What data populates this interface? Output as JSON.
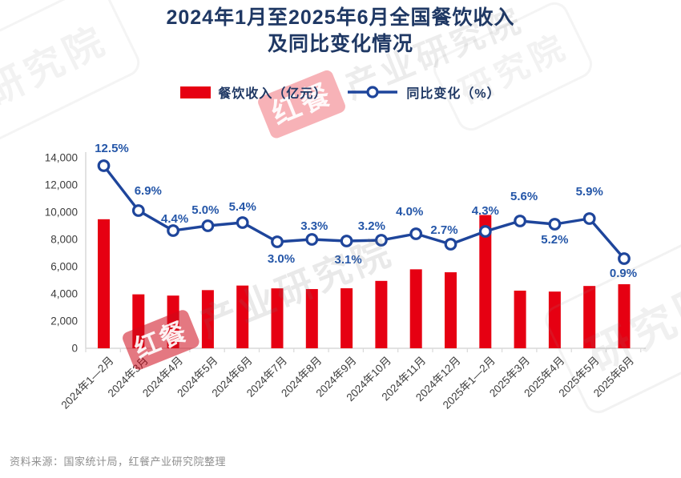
{
  "title": {
    "line1": "2024年1月至2025年6月全国餐饮收入",
    "line2": "及同比变化情况"
  },
  "legend": {
    "bar_label": "餐饮收入（亿元）",
    "line_label": "同比变化（%）"
  },
  "source": "资料来源：国家统计局，红餐产业研究院整理",
  "watermark": {
    "brand": "红餐",
    "suffix": "产业研究院",
    "stamp": "研究院"
  },
  "colors": {
    "bar_red": "#e60012",
    "line_blue": "#1e459b",
    "value_label_blue": "#2456a8",
    "title_navy": "#1f3864",
    "axis_gray": "#d9d9d9",
    "tick_text_gray": "#3d3d3d",
    "source_gray": "#8f8f8f"
  },
  "chart_data": {
    "type": "bar+line",
    "title": "2024年1月至2025年6月全国餐饮收入及同比变化情况",
    "categories": [
      "2024年1—2月",
      "2024年3月",
      "2024年4月",
      "2024年5月",
      "2024年6月",
      "2024年7月",
      "2024年8月",
      "2024年9月",
      "2024年10月",
      "2024年11月",
      "2024年12月",
      "2025年1—2月",
      "2025年3月",
      "2025年4月",
      "2025年5月",
      "2025年6月"
    ],
    "series": [
      {
        "name": "餐饮收入（亿元）",
        "type": "bar",
        "unit": "亿元",
        "values": [
          9481,
          3964,
          3872,
          4274,
          4609,
          4403,
          4351,
          4410,
          4952,
          5802,
          5585,
          9792,
          4235,
          4167,
          4578,
          4708
        ]
      },
      {
        "name": "同比变化（%）",
        "type": "line",
        "unit": "%",
        "values": [
          12.5,
          6.9,
          4.4,
          5.0,
          5.4,
          3.0,
          3.3,
          3.1,
          3.2,
          4.0,
          2.7,
          4.3,
          5.6,
          5.2,
          5.9,
          0.9
        ],
        "point_labels": [
          "12.5%",
          "6.9%",
          "4.4%",
          "5.0%",
          "5.4%",
          "3.0%",
          "3.3%",
          "3.1%",
          "3.2%",
          "4.0%",
          "2.7%",
          "4.3%",
          "5.6%",
          "5.2%",
          "5.9%",
          "0.9%"
        ]
      }
    ],
    "y_axis": {
      "min": 0,
      "max": 14000,
      "tick_step": 2000,
      "tick_labels": [
        "0",
        "2,000",
        "4,000",
        "6,000",
        "8,000",
        "10,000",
        "12,000",
        "14,000"
      ]
    },
    "secondary_axis": {
      "visible": false,
      "min": 0,
      "max": 14
    },
    "grid": false,
    "legend_position": "top",
    "label_offsets": {
      "dx": [
        10,
        12,
        2,
        -3,
        0,
        5,
        3,
        2,
        -12,
        -8,
        -8,
        0,
        5,
        0,
        0,
        -1
      ],
      "dy": [
        -17,
        -20,
        -10,
        -15,
        -15,
        26,
        -12,
        28,
        -13,
        -23,
        -13,
        -21,
        -26,
        24,
        -29,
        23
      ]
    }
  }
}
